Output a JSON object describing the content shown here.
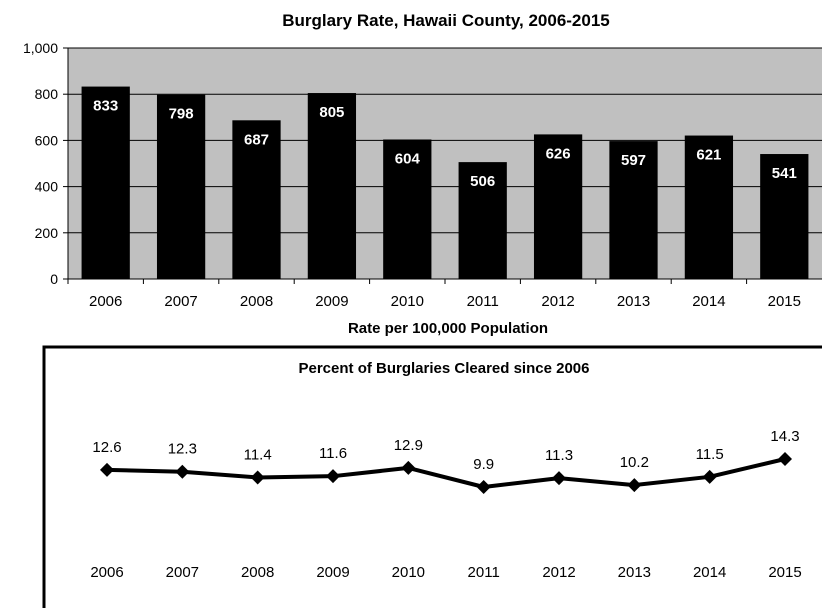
{
  "chart_data": [
    {
      "type": "bar",
      "title": "Burglary Rate, Hawaii County, 2006-2015",
      "xlabel": "Rate per 100,000 Population",
      "ylabel": "",
      "categories": [
        "2006",
        "2007",
        "2008",
        "2009",
        "2010",
        "2011",
        "2012",
        "2013",
        "2014",
        "2015"
      ],
      "values": [
        833,
        798,
        687,
        805,
        604,
        506,
        626,
        597,
        621,
        541
      ],
      "ylim": [
        0,
        1000
      ],
      "yticks": [
        "0",
        "200",
        "400",
        "600",
        "800",
        "1,000"
      ],
      "grid": true,
      "legend": "none",
      "colors": {
        "bar": "#000000",
        "plot_bg": "#c0c0c0",
        "label_text": "#ffffff"
      }
    },
    {
      "type": "line",
      "title": "Percent of Burglaries Cleared since 2006",
      "xlabel": "",
      "ylabel": "",
      "categories": [
        "2006",
        "2007",
        "2008",
        "2009",
        "2010",
        "2011",
        "2012",
        "2013",
        "2014",
        "2015"
      ],
      "values": [
        12.6,
        12.3,
        11.4,
        11.6,
        12.9,
        9.9,
        11.3,
        10.2,
        11.5,
        14.3
      ],
      "grid": false,
      "legend": "none",
      "colors": {
        "line": "#000000",
        "marker": "#000000"
      }
    }
  ]
}
